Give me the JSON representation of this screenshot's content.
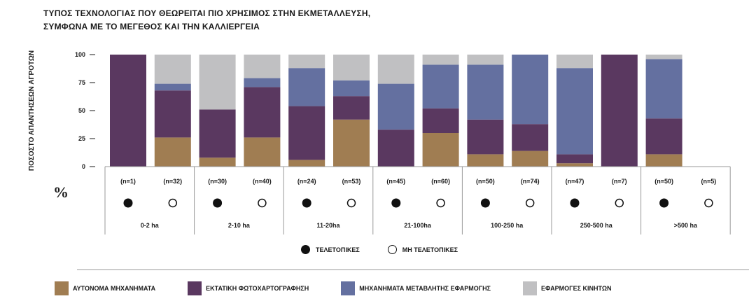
{
  "title_line1": "ΤΥΠΟΣ ΤΕΧΝΟΛΟΓΙΑΣ ΠΟΥ ΘΕΩΡΕΙΤΑΙ ΠΙΟ ΧΡΗΣΙΜΟΣ ΣΤΗΝ ΕΚΜΕΤΑΛΛΕΥΣΗ,",
  "title_line2": "ΣΥΜΦΩΝΑ ΜΕ ΤΟ ΜΕΓΕΘΟΣ ΚΑΙ ΤΗΝ ΚΑΛΛΙΕΡΓΕΙΑ",
  "ylabel": "ΠΟΣΟΣΤΟ ΑΠΑΝΤΗΣΕΩΝ ΑΓΡΟΤΩΝ",
  "unit": "%",
  "status_legend": {
    "filled": "ΤΕΛΕΤΟΠΙΚΕΣ",
    "empty": "ΜΗ ΤΕΛΕΤΟΠΙΚΕΣ"
  },
  "colors": {
    "series1": "#a07d52",
    "series2": "#5a3860",
    "series3": "#6470a0",
    "series4": "#c0c0c2"
  },
  "chart_data": {
    "type": "bar",
    "stacked": true,
    "ylim": [
      0,
      100
    ],
    "yticks": [
      "100",
      "75",
      "50",
      "25",
      "0"
    ],
    "groups": [
      "0-2 ha",
      "2-10 ha",
      "11-20ha",
      "21-100ha",
      "100-250 ha",
      "250-500 ha",
      ">500 ha"
    ],
    "categories": [
      "(n=1)",
      "(n=32)",
      "(n=30)",
      "(n=40)",
      "(n=24)",
      "(n=53)",
      "(n=45)",
      "(n=60)",
      "(n=50)",
      "(n=74)",
      "(n=47)",
      "(n=7)",
      "(n=50)",
      "(n=5)"
    ],
    "status": [
      "filled",
      "empty",
      "filled",
      "empty",
      "filled",
      "empty",
      "filled",
      "empty",
      "filled",
      "empty",
      "filled",
      "empty",
      "filled",
      "empty"
    ],
    "series": [
      {
        "name": "ΑΥΤΟΝΟΜΑ ΜΗΧΑΝΗΜΑΤΑ",
        "values": [
          0,
          26,
          8,
          26,
          6,
          42,
          0,
          30,
          11,
          14,
          3,
          0,
          11,
          0
        ]
      },
      {
        "name": "ΕΚΤΑΤΙΚΗ ΦΩΤΟΧΑΡΤΟΓΡΑΦΗΣΗ",
        "values": [
          100,
          42,
          43,
          45,
          48,
          21,
          33,
          22,
          31,
          24,
          8,
          100,
          32,
          0
        ]
      },
      {
        "name": "ΜΗΧΑΝΗΜΑΤΑ ΜΕΤΑΒΛΗΤΗΣ ΕΦΑΡΜΟΓΗΣ",
        "values": [
          0,
          6,
          0,
          8,
          34,
          14,
          41,
          39,
          49,
          62,
          77,
          0,
          53,
          0
        ]
      },
      {
        "name": "ΕΦΑΡΜΟΓΕΣ ΚΙΝΗΤΩΝ",
        "values": [
          0,
          26,
          49,
          21,
          12,
          23,
          26,
          9,
          9,
          0,
          12,
          0,
          4,
          0
        ]
      }
    ]
  }
}
